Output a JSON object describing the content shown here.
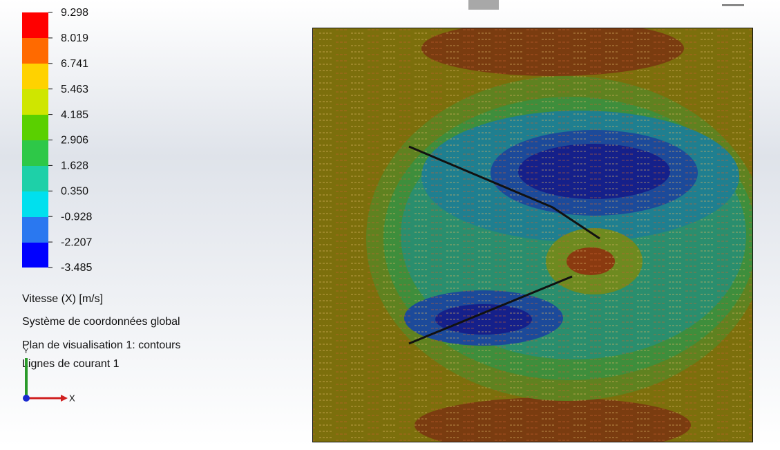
{
  "legend": {
    "ticks": [
      "9.298",
      "8.019",
      "6.741",
      "5.463",
      "4.185",
      "2.906",
      "1.628",
      "0.350",
      "-0.928",
      "-2.207",
      "-3.485"
    ]
  },
  "info": {
    "quantity": "Vitesse (X) [m/s]",
    "coordinate_system": "Système de coordonnées global",
    "plane": "Plan de visualisation 1: contours",
    "streamlines": "Lignes de courant 1"
  },
  "triad": {
    "y": "Y",
    "x": "X"
  }
}
